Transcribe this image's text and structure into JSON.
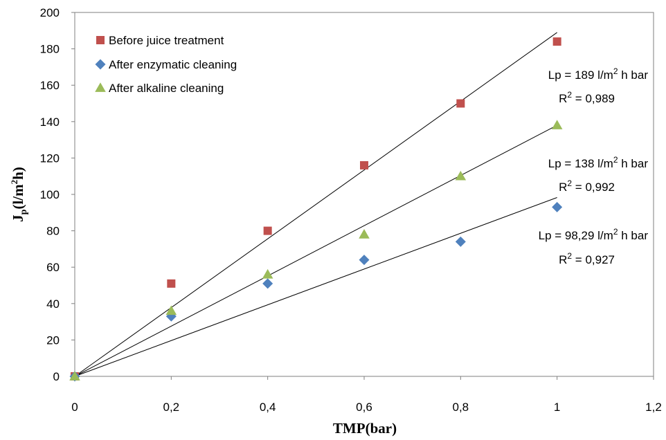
{
  "chart_data": {
    "type": "scatter",
    "xlabel": "TMP(bar)",
    "ylabel_main": "J",
    "ylabel_sub": "p",
    "ylabel_rest": "(l/m",
    "ylabel_sup": "2",
    "ylabel_end": "h)",
    "xlim": [
      0,
      1.2
    ],
    "ylim": [
      0,
      200
    ],
    "x_ticks": [
      {
        "value": 0,
        "label": "0"
      },
      {
        "value": 0.2,
        "label": "0,2"
      },
      {
        "value": 0.4,
        "label": "0,4"
      },
      {
        "value": 0.6,
        "label": "0,6"
      },
      {
        "value": 0.8,
        "label": "0,8"
      },
      {
        "value": 1,
        "label": "1"
      },
      {
        "value": 1.2,
        "label": "1,2"
      }
    ],
    "y_ticks": [
      {
        "value": 0,
        "label": "0"
      },
      {
        "value": 20,
        "label": "20"
      },
      {
        "value": 40,
        "label": "40"
      },
      {
        "value": 60,
        "label": "60"
      },
      {
        "value": 80,
        "label": "80"
      },
      {
        "value": 100,
        "label": "100"
      },
      {
        "value": 120,
        "label": "120"
      },
      {
        "value": 140,
        "label": "140"
      },
      {
        "value": 160,
        "label": "160"
      },
      {
        "value": 180,
        "label": "180"
      },
      {
        "value": 200,
        "label": "200"
      }
    ],
    "grid": false,
    "legend_position": "top-left",
    "series": [
      {
        "name": "Before juice treatment",
        "marker": "square",
        "color": "#c0504d",
        "x": [
          0,
          0.2,
          0.4,
          0.6,
          0.8,
          1
        ],
        "y": [
          0,
          51,
          80,
          116,
          150,
          184
        ],
        "trendline_slope": 189,
        "annotation": {
          "lp_prefix": "Lp = 189 l/m",
          "sup": "2",
          "lp_suffix": " h bar",
          "r2_prefix": "R",
          "r2_suffix": " = 0,989"
        }
      },
      {
        "name": "After enzymatic cleaning",
        "marker": "diamond",
        "color": "#4f81bd",
        "x": [
          0,
          0.2,
          0.4,
          0.6,
          0.8,
          1
        ],
        "y": [
          0,
          33,
          51,
          64,
          74,
          93
        ],
        "trendline_slope": 98.29,
        "annotation": {
          "lp_prefix": "Lp = 98,29 l/m",
          "sup": "2",
          "lp_suffix": " h bar",
          "r2_prefix": "R",
          "r2_suffix": " = 0,927"
        }
      },
      {
        "name": "After alkaline cleaning",
        "marker": "triangle",
        "color": "#9bbb59",
        "x": [
          0,
          0.2,
          0.4,
          0.6,
          0.8,
          1
        ],
        "y": [
          0,
          36,
          56,
          78,
          110,
          138
        ],
        "trendline_slope": 138,
        "annotation": {
          "lp_prefix": "Lp = 138 l/m",
          "sup": "2",
          "lp_suffix": " h bar",
          "r2_prefix": "R",
          "r2_suffix": " = 0,992"
        }
      }
    ]
  }
}
